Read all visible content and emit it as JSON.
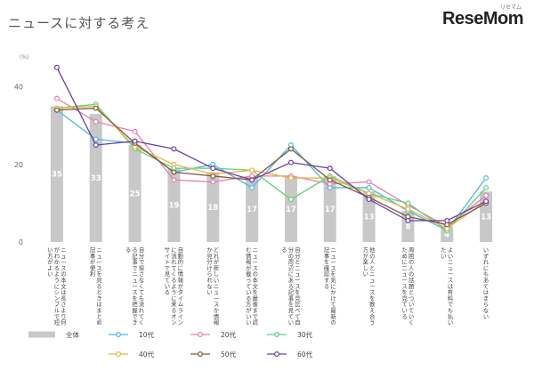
{
  "title": "ニュースに対する考え",
  "logo": "ReseMom",
  "logo_sub": "リセマム",
  "chart_data": {
    "type": "bar",
    "ylabel": "(%)",
    "ylim": [
      0,
      50
    ],
    "yticks": [
      0,
      20,
      40
    ],
    "grid": false,
    "legend_position": "bottom",
    "categories": [
      "ニュースの本文は長さより何がわかるようにシンプルで短い方がよい",
      "ニュースを見るときはまとめ記事が便利",
      "自分で探さなくても流れてくる記事でニュースを把握できる",
      "自動的に情報がタイムラインに流れてくるように来るオンサイトで見ている",
      "どれが新しいニュースか情報か見分けられない",
      "ニュースの本文を最後まで読む情報が載っている方がいい",
      "自分とニュースを見比べて自分の周辺にある記事を見ている",
      "ニュースを気にかけて最新の記事を確認する",
      "他の人とニュースを教え合う方が楽しい",
      "周囲の人の話題とついていくためにニュースを見ている",
      "よいニュースは有料でも払いたい",
      "いずれにもあてはまらない"
    ],
    "bar_series": {
      "name": "全体",
      "color": "#c8c8c8",
      "values": [
        35,
        33,
        25,
        19,
        18,
        17,
        17,
        17,
        13,
        8,
        4,
        13
      ]
    },
    "series": [
      {
        "name": "10代",
        "color": "#4db8e0",
        "values": [
          34,
          26.5,
          25.5,
          18,
          20,
          14,
          25,
          14,
          14,
          8,
          3,
          16.5
        ]
      },
      {
        "name": "20代",
        "color": "#e87fb0",
        "values": [
          37,
          31,
          28.5,
          16,
          15.5,
          17,
          17,
          15,
          15.5,
          9.5,
          4,
          12
        ]
      },
      {
        "name": "30代",
        "color": "#5fd17a",
        "values": [
          34.5,
          35.5,
          24,
          19,
          19,
          18.5,
          11,
          17,
          12.5,
          10,
          3,
          14
        ]
      },
      {
        "name": "40代",
        "color": "#e9b545",
        "values": [
          34.5,
          35,
          24.5,
          20,
          17.5,
          18.5,
          16.5,
          16.5,
          12.5,
          8.5,
          3.5,
          10.5
        ]
      },
      {
        "name": "50代",
        "color": "#7a5a3a",
        "values": [
          34,
          34.5,
          25.5,
          18,
          17,
          16,
          24,
          16,
          11.5,
          6.5,
          4.5,
          10
        ]
      },
      {
        "name": "60代",
        "color": "#6b3fa0",
        "values": [
          45,
          25,
          26,
          24,
          19,
          16,
          20.5,
          19,
          11,
          5.5,
          5.5,
          10.5
        ]
      }
    ]
  }
}
